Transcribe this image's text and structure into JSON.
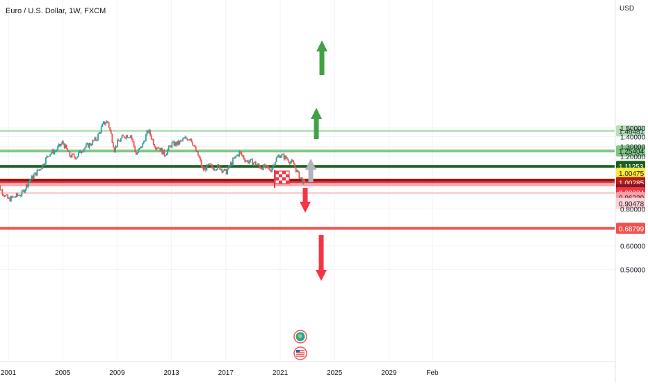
{
  "chart_data": {
    "type": "line",
    "title": "Euro / U.S. Dollar, 1W, FXCM",
    "y_unit": "USD",
    "y_scale": "log",
    "x_ticks": [
      "2001",
      "2005",
      "2009",
      "2013",
      "2017",
      "2021",
      "2025",
      "2029",
      "Feb"
    ],
    "y_ticks": [
      "1.50000",
      "1.40000",
      "1.30000",
      "1.20000",
      "0.80000",
      "0.60000",
      "0.50000"
    ],
    "series": [
      {
        "x": [
          "2000",
          "2000.5",
          "2001",
          "2001.5",
          "2002",
          "2002.5",
          "2003",
          "2003.5",
          "2004",
          "2004.5",
          "2005",
          "2005.5",
          "2006",
          "2006.5",
          "2007",
          "2007.5",
          "2008",
          "2008.3",
          "2008.8",
          "2009",
          "2009.5",
          "2010",
          "2010.4",
          "2010.9",
          "2011",
          "2011.3",
          "2011.8",
          "2012",
          "2012.5",
          "2013",
          "2013.5",
          "2014",
          "2014.4",
          "2014.8",
          "2015",
          "2015.3",
          "2015.8",
          "2016",
          "2016.5",
          "2017",
          "2017.5",
          "2018",
          "2018.5",
          "2019",
          "2019.5",
          "2020",
          "2020.3",
          "2020.7",
          "2021",
          "2021.5",
          "2022",
          "2022.3",
          "2022.6",
          "2022.8"
        ],
        "values": [
          1.0,
          0.92,
          0.86,
          0.88,
          0.9,
          0.99,
          1.05,
          1.12,
          1.23,
          1.26,
          1.34,
          1.21,
          1.2,
          1.28,
          1.32,
          1.38,
          1.55,
          1.58,
          1.27,
          1.33,
          1.41,
          1.42,
          1.22,
          1.32,
          1.37,
          1.47,
          1.3,
          1.3,
          1.22,
          1.32,
          1.33,
          1.38,
          1.39,
          1.25,
          1.2,
          1.08,
          1.12,
          1.1,
          1.11,
          1.06,
          1.16,
          1.24,
          1.16,
          1.15,
          1.11,
          1.1,
          1.08,
          1.18,
          1.22,
          1.18,
          1.13,
          1.05,
          1.0,
          0.97
        ]
      }
    ],
    "horizontal_levels": [
      {
        "label": "1.46481",
        "value": 1.46481,
        "color": "#b5e2b8",
        "label_color": "#131722"
      },
      {
        "label": "1.25404",
        "value": 1.25404,
        "color": "#81c784",
        "label_color": "#131722"
      },
      {
        "label": "1.11253",
        "value": 1.11253,
        "color": "#1b5e20",
        "label_color": "#ffffff"
      },
      {
        "label": "1.00475",
        "value": 1.00475,
        "color": "#ffeb3b",
        "label_color": "#131722"
      },
      {
        "label": "1.00285",
        "value": 1.00285,
        "color": "#b71c1c",
        "label_color": "#ffffff"
      },
      {
        "label": "0.99676",
        "value": 0.99676,
        "color": "#801922",
        "label_color": "#ffffff"
      },
      {
        "label": "0.98334",
        "value": 0.98334,
        "color": "#f23645",
        "label_color": "#ffffff"
      },
      {
        "label": "0.96230",
        "value": 0.9623,
        "color": "#f7a1a7",
        "label_color": "#131722"
      },
      {
        "label": "0.90478",
        "value": 0.90478,
        "color": "#fcd4d7",
        "label_color": "#131722"
      },
      {
        "label": "0.68799",
        "value": 0.68799,
        "color": "#ef5350",
        "label_color": "#ffffff"
      }
    ],
    "arrows": [
      {
        "color": "#43a047",
        "direction": "up"
      },
      {
        "color": "#43a047",
        "direction": "up"
      },
      {
        "color": "#b0b4bb",
        "direction": "up"
      },
      {
        "color": "#f23645",
        "direction": "down"
      },
      {
        "color": "#f23645",
        "direction": "down"
      }
    ],
    "colors": {
      "candle_up": "#26a69a",
      "candle_down": "#ef5350",
      "grid": "#f0f3fa",
      "axis_text": "#131722",
      "scale_border": "#e0e3eb"
    },
    "icons": [
      "checkered-flag-icon",
      "earth-event-icon",
      "us-flag-event-icon"
    ]
  }
}
